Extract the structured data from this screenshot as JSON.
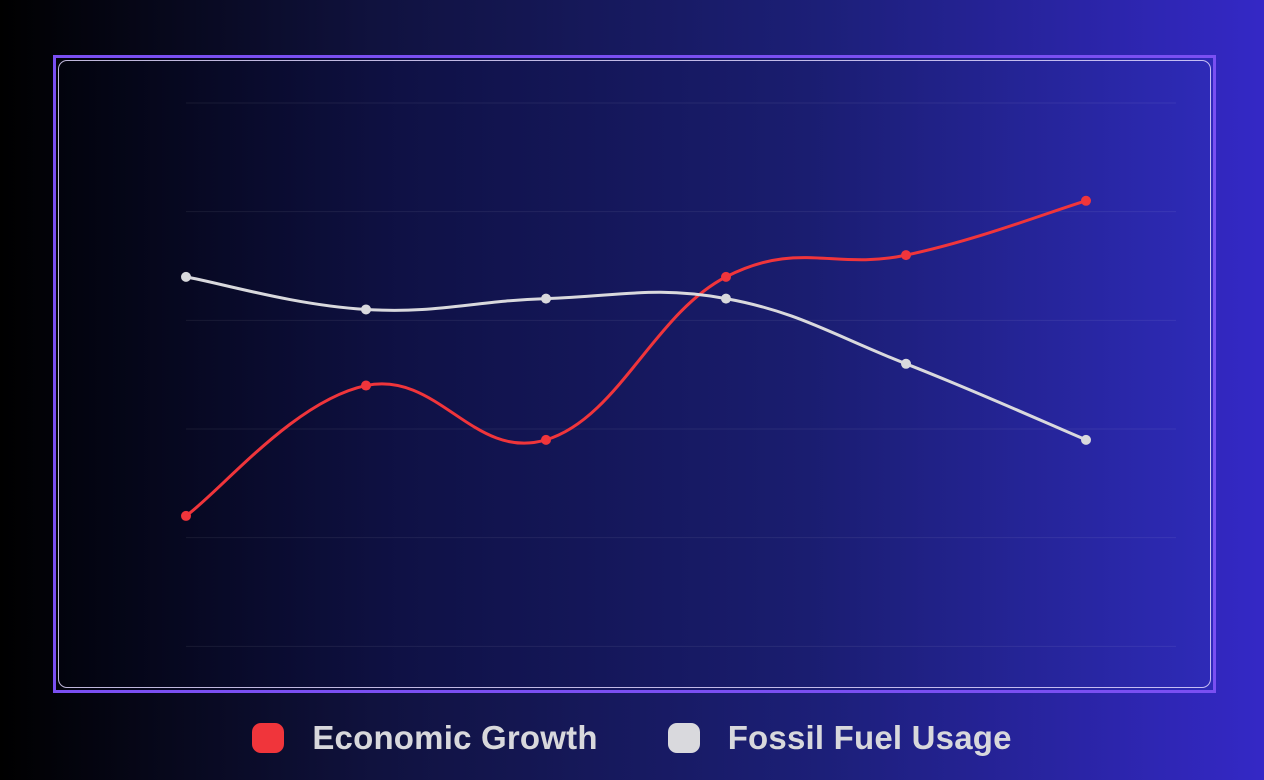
{
  "chart_data": {
    "type": "line",
    "x": [
      1,
      2,
      3,
      4,
      5,
      6
    ],
    "ylim": [
      0,
      6
    ],
    "grid": true,
    "legend_position": "bottom-center",
    "series": [
      {
        "name": "Economic Growth",
        "color": "#f0353b",
        "values": [
          2.2,
          3.4,
          2.9,
          4.4,
          4.6,
          5.1
        ]
      },
      {
        "name": "Fossil Fuel Usage",
        "color": "#d9d9dd",
        "values": [
          4.4,
          4.1,
          4.2,
          4.2,
          3.6,
          2.9
        ]
      }
    ]
  },
  "legend": {
    "items": [
      {
        "label": "Economic Growth",
        "color": "#f0353b"
      },
      {
        "label": "Fossil Fuel Usage",
        "color": "#d9d9dd"
      }
    ]
  }
}
